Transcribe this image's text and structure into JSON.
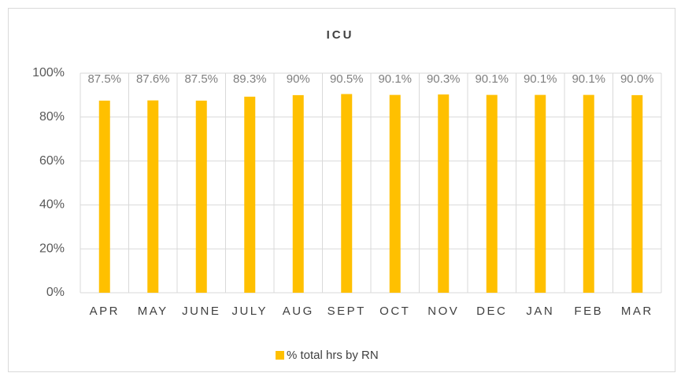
{
  "chart_data": {
    "type": "bar",
    "title": "ICU",
    "categories": [
      "APR",
      "MAY",
      "JUNE",
      "JULY",
      "AUG",
      "SEPT",
      "OCT",
      "NOV",
      "DEC",
      "JAN",
      "FEB",
      "MAR"
    ],
    "series": [
      {
        "name": "% total hrs by RN",
        "color": "#ffc000",
        "values": [
          87.5,
          87.6,
          87.5,
          89.3,
          90,
          90.5,
          90.1,
          90.3,
          90.1,
          90.1,
          90.1,
          90.0
        ],
        "value_labels": [
          "87.5%",
          "87.6%",
          "87.5%",
          "89.3%",
          "90%",
          "90.5%",
          "90.1%",
          "90.3%",
          "90.1%",
          "90.1%",
          "90.1%",
          "90.0%"
        ]
      }
    ],
    "ylim": [
      0,
      100
    ],
    "yticks": [
      {
        "value": 0,
        "label": "0%"
      },
      {
        "value": 20,
        "label": "20%"
      },
      {
        "value": 40,
        "label": "40%"
      },
      {
        "value": 60,
        "label": "60%"
      },
      {
        "value": 80,
        "label": "80%"
      },
      {
        "value": 100,
        "label": "100%"
      }
    ],
    "grid": true,
    "legend": "bottom"
  }
}
